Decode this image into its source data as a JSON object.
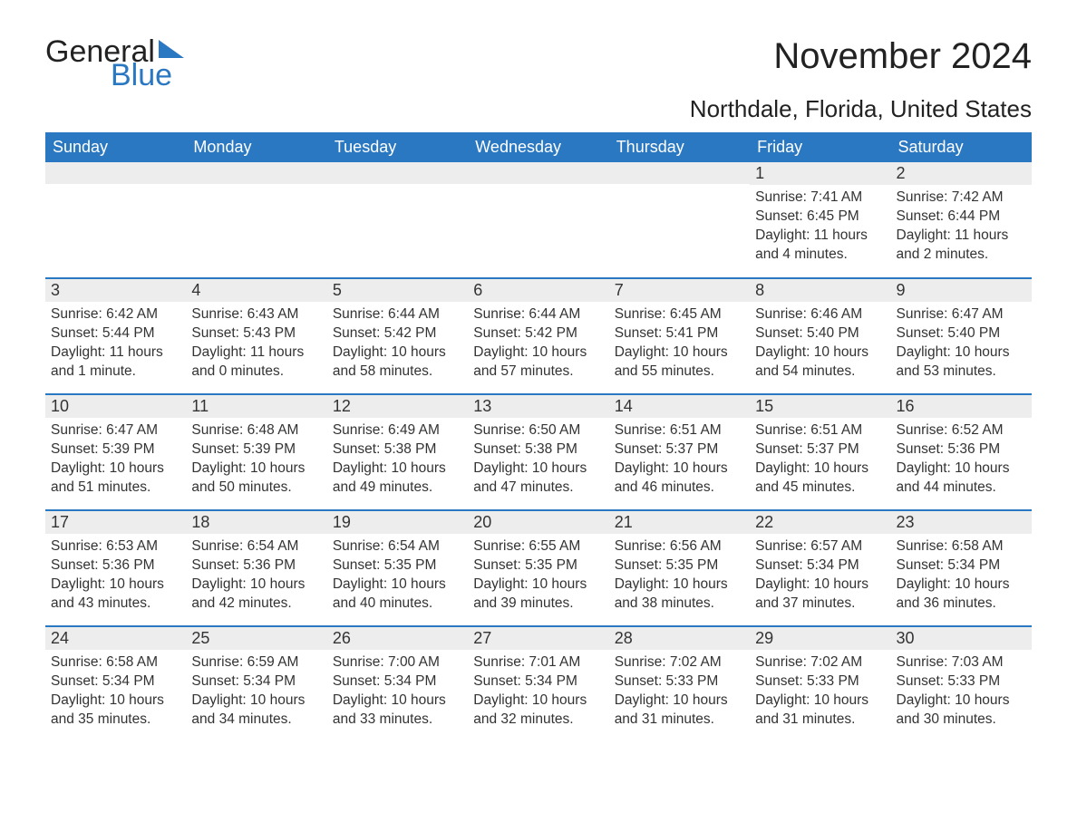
{
  "logo": {
    "word1": "General",
    "word2": "Blue"
  },
  "title": "November 2024",
  "location": "Northdale, Florida, United States",
  "colors": {
    "header_bg": "#2b78c2",
    "header_text": "#ffffff",
    "daynum_bg": "#ededed",
    "border": "#2b78c2",
    "text": "#333333",
    "logo_blue": "#2b78c2",
    "page_bg": "#ffffff"
  },
  "day_labels": [
    "Sunday",
    "Monday",
    "Tuesday",
    "Wednesday",
    "Thursday",
    "Friday",
    "Saturday"
  ],
  "weeks": [
    [
      null,
      null,
      null,
      null,
      null,
      {
        "n": "1",
        "sunrise": "7:41 AM",
        "sunset": "6:45 PM",
        "daylight": "11 hours and 4 minutes."
      },
      {
        "n": "2",
        "sunrise": "7:42 AM",
        "sunset": "6:44 PM",
        "daylight": "11 hours and 2 minutes."
      }
    ],
    [
      {
        "n": "3",
        "sunrise": "6:42 AM",
        "sunset": "5:44 PM",
        "daylight": "11 hours and 1 minute."
      },
      {
        "n": "4",
        "sunrise": "6:43 AM",
        "sunset": "5:43 PM",
        "daylight": "11 hours and 0 minutes."
      },
      {
        "n": "5",
        "sunrise": "6:44 AM",
        "sunset": "5:42 PM",
        "daylight": "10 hours and 58 minutes."
      },
      {
        "n": "6",
        "sunrise": "6:44 AM",
        "sunset": "5:42 PM",
        "daylight": "10 hours and 57 minutes."
      },
      {
        "n": "7",
        "sunrise": "6:45 AM",
        "sunset": "5:41 PM",
        "daylight": "10 hours and 55 minutes."
      },
      {
        "n": "8",
        "sunrise": "6:46 AM",
        "sunset": "5:40 PM",
        "daylight": "10 hours and 54 minutes."
      },
      {
        "n": "9",
        "sunrise": "6:47 AM",
        "sunset": "5:40 PM",
        "daylight": "10 hours and 53 minutes."
      }
    ],
    [
      {
        "n": "10",
        "sunrise": "6:47 AM",
        "sunset": "5:39 PM",
        "daylight": "10 hours and 51 minutes."
      },
      {
        "n": "11",
        "sunrise": "6:48 AM",
        "sunset": "5:39 PM",
        "daylight": "10 hours and 50 minutes."
      },
      {
        "n": "12",
        "sunrise": "6:49 AM",
        "sunset": "5:38 PM",
        "daylight": "10 hours and 49 minutes."
      },
      {
        "n": "13",
        "sunrise": "6:50 AM",
        "sunset": "5:38 PM",
        "daylight": "10 hours and 47 minutes."
      },
      {
        "n": "14",
        "sunrise": "6:51 AM",
        "sunset": "5:37 PM",
        "daylight": "10 hours and 46 minutes."
      },
      {
        "n": "15",
        "sunrise": "6:51 AM",
        "sunset": "5:37 PM",
        "daylight": "10 hours and 45 minutes."
      },
      {
        "n": "16",
        "sunrise": "6:52 AM",
        "sunset": "5:36 PM",
        "daylight": "10 hours and 44 minutes."
      }
    ],
    [
      {
        "n": "17",
        "sunrise": "6:53 AM",
        "sunset": "5:36 PM",
        "daylight": "10 hours and 43 minutes."
      },
      {
        "n": "18",
        "sunrise": "6:54 AM",
        "sunset": "5:36 PM",
        "daylight": "10 hours and 42 minutes."
      },
      {
        "n": "19",
        "sunrise": "6:54 AM",
        "sunset": "5:35 PM",
        "daylight": "10 hours and 40 minutes."
      },
      {
        "n": "20",
        "sunrise": "6:55 AM",
        "sunset": "5:35 PM",
        "daylight": "10 hours and 39 minutes."
      },
      {
        "n": "21",
        "sunrise": "6:56 AM",
        "sunset": "5:35 PM",
        "daylight": "10 hours and 38 minutes."
      },
      {
        "n": "22",
        "sunrise": "6:57 AM",
        "sunset": "5:34 PM",
        "daylight": "10 hours and 37 minutes."
      },
      {
        "n": "23",
        "sunrise": "6:58 AM",
        "sunset": "5:34 PM",
        "daylight": "10 hours and 36 minutes."
      }
    ],
    [
      {
        "n": "24",
        "sunrise": "6:58 AM",
        "sunset": "5:34 PM",
        "daylight": "10 hours and 35 minutes."
      },
      {
        "n": "25",
        "sunrise": "6:59 AM",
        "sunset": "5:34 PM",
        "daylight": "10 hours and 34 minutes."
      },
      {
        "n": "26",
        "sunrise": "7:00 AM",
        "sunset": "5:34 PM",
        "daylight": "10 hours and 33 minutes."
      },
      {
        "n": "27",
        "sunrise": "7:01 AM",
        "sunset": "5:34 PM",
        "daylight": "10 hours and 32 minutes."
      },
      {
        "n": "28",
        "sunrise": "7:02 AM",
        "sunset": "5:33 PM",
        "daylight": "10 hours and 31 minutes."
      },
      {
        "n": "29",
        "sunrise": "7:02 AM",
        "sunset": "5:33 PM",
        "daylight": "10 hours and 31 minutes."
      },
      {
        "n": "30",
        "sunrise": "7:03 AM",
        "sunset": "5:33 PM",
        "daylight": "10 hours and 30 minutes."
      }
    ]
  ],
  "labels": {
    "sunrise": "Sunrise: ",
    "sunset": "Sunset: ",
    "daylight": "Daylight: "
  }
}
